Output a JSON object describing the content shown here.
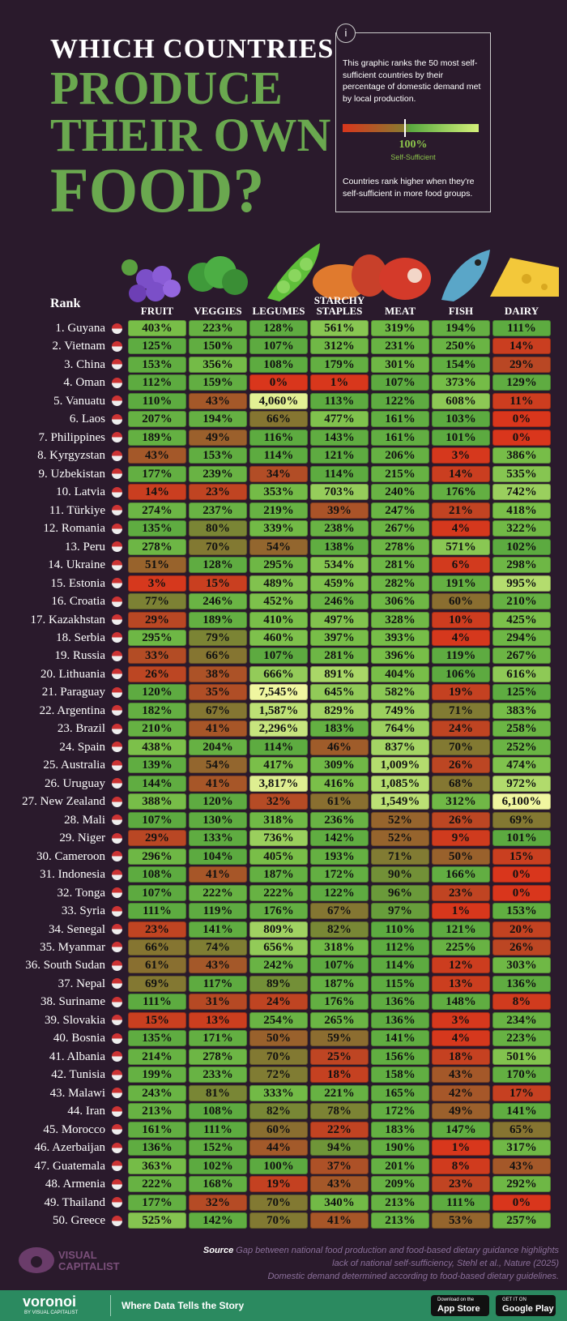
{
  "header": {
    "title_lines": [
      "WHICH COUNTRIES",
      "PRODUCE",
      "THEIR OWN",
      "FOOD?"
    ]
  },
  "info": {
    "icon": "i",
    "text": "This graphic ranks the 50 most self-sufficient countries by their percentage of domestic demand met by local production.",
    "legend_value": "100%",
    "legend_label": "Self-Sufficient",
    "note": "Countries rank higher when they're self-sufficient in more food groups."
  },
  "table": {
    "rank_header": "Rank",
    "columns": [
      "FRUIT",
      "VEGGIES",
      "LEGUMES",
      "STARCHY STAPLES",
      "MEAT",
      "FISH",
      "DAIRY"
    ],
    "rows": [
      [
        "1. Guyana",
        "403%",
        "223%",
        "128%",
        "561%",
        "319%",
        "194%",
        "111%"
      ],
      [
        "2. Vietnam",
        "125%",
        "150%",
        "107%",
        "312%",
        "231%",
        "250%",
        "14%"
      ],
      [
        "3. China",
        "153%",
        "356%",
        "108%",
        "179%",
        "301%",
        "154%",
        "29%"
      ],
      [
        "4. Oman",
        "112%",
        "159%",
        "0%",
        "1%",
        "107%",
        "373%",
        "129%"
      ],
      [
        "5. Vanuatu",
        "110%",
        "43%",
        "4,060%",
        "113%",
        "122%",
        "608%",
        "11%"
      ],
      [
        "6. Laos",
        "207%",
        "194%",
        "66%",
        "477%",
        "161%",
        "103%",
        "0%"
      ],
      [
        "7. Philippines",
        "189%",
        "49%",
        "116%",
        "143%",
        "161%",
        "101%",
        "0%"
      ],
      [
        "8. Kyrgyzstan",
        "43%",
        "153%",
        "114%",
        "121%",
        "206%",
        "3%",
        "386%"
      ],
      [
        "9. Uzbekistan",
        "177%",
        "239%",
        "34%",
        "114%",
        "215%",
        "14%",
        "535%"
      ],
      [
        "10. Latvia",
        "14%",
        "23%",
        "353%",
        "703%",
        "240%",
        "176%",
        "742%"
      ],
      [
        "11. Türkiye",
        "274%",
        "237%",
        "219%",
        "39%",
        "247%",
        "21%",
        "418%"
      ],
      [
        "12. Romania",
        "135%",
        "80%",
        "339%",
        "238%",
        "267%",
        "4%",
        "322%"
      ],
      [
        "13. Peru",
        "278%",
        "70%",
        "54%",
        "138%",
        "278%",
        "571%",
        "102%"
      ],
      [
        "14. Ukraine",
        "51%",
        "128%",
        "295%",
        "534%",
        "281%",
        "6%",
        "298%"
      ],
      [
        "15. Estonia",
        "3%",
        "15%",
        "489%",
        "459%",
        "282%",
        "191%",
        "995%"
      ],
      [
        "16. Croatia",
        "77%",
        "246%",
        "452%",
        "246%",
        "306%",
        "60%",
        "210%"
      ],
      [
        "17. Kazakhstan",
        "29%",
        "189%",
        "410%",
        "497%",
        "328%",
        "10%",
        "425%"
      ],
      [
        "18. Serbia",
        "295%",
        "79%",
        "460%",
        "397%",
        "393%",
        "4%",
        "294%"
      ],
      [
        "19. Russia",
        "33%",
        "66%",
        "107%",
        "281%",
        "396%",
        "119%",
        "267%"
      ],
      [
        "20. Lithuania",
        "26%",
        "38%",
        "666%",
        "891%",
        "404%",
        "106%",
        "616%"
      ],
      [
        "21. Paraguay",
        "120%",
        "35%",
        "7,545%",
        "645%",
        "582%",
        "19%",
        "125%"
      ],
      [
        "22. Argentina",
        "182%",
        "67%",
        "1,587%",
        "829%",
        "749%",
        "71%",
        "383%"
      ],
      [
        "23. Brazil",
        "210%",
        "41%",
        "2,296%",
        "183%",
        "764%",
        "24%",
        "258%"
      ],
      [
        "24. Spain",
        "438%",
        "204%",
        "114%",
        "46%",
        "837%",
        "70%",
        "252%"
      ],
      [
        "25. Australia",
        "139%",
        "54%",
        "417%",
        "309%",
        "1,009%",
        "26%",
        "474%"
      ],
      [
        "26. Uruguay",
        "144%",
        "41%",
        "3,817%",
        "416%",
        "1,085%",
        "68%",
        "972%"
      ],
      [
        "27. New Zealand",
        "388%",
        "120%",
        "32%",
        "61%",
        "1,549%",
        "312%",
        "6,100%"
      ],
      [
        "28. Mali",
        "107%",
        "130%",
        "318%",
        "236%",
        "52%",
        "26%",
        "69%"
      ],
      [
        "29. Niger",
        "29%",
        "133%",
        "736%",
        "142%",
        "52%",
        "9%",
        "101%"
      ],
      [
        "30. Cameroon",
        "296%",
        "104%",
        "405%",
        "193%",
        "71%",
        "50%",
        "15%"
      ],
      [
        "31. Indonesia",
        "108%",
        "41%",
        "187%",
        "172%",
        "90%",
        "166%",
        "0%"
      ],
      [
        "32. Tonga",
        "107%",
        "222%",
        "222%",
        "122%",
        "96%",
        "23%",
        "0%"
      ],
      [
        "33. Syria",
        "111%",
        "119%",
        "176%",
        "67%",
        "97%",
        "1%",
        "153%"
      ],
      [
        "34. Senegal",
        "23%",
        "141%",
        "809%",
        "82%",
        "110%",
        "121%",
        "20%"
      ],
      [
        "35. Myanmar",
        "66%",
        "74%",
        "656%",
        "318%",
        "112%",
        "225%",
        "26%"
      ],
      [
        "36. South Sudan",
        "61%",
        "43%",
        "242%",
        "107%",
        "114%",
        "12%",
        "303%"
      ],
      [
        "37. Nepal",
        "69%",
        "117%",
        "89%",
        "187%",
        "115%",
        "13%",
        "136%"
      ],
      [
        "38. Suriname",
        "111%",
        "31%",
        "24%",
        "176%",
        "136%",
        "148%",
        "8%"
      ],
      [
        "39. Slovakia",
        "15%",
        "13%",
        "254%",
        "265%",
        "136%",
        "3%",
        "234%"
      ],
      [
        "40. Bosnia",
        "135%",
        "171%",
        "50%",
        "59%",
        "141%",
        "4%",
        "223%"
      ],
      [
        "41. Albania",
        "214%",
        "278%",
        "70%",
        "25%",
        "156%",
        "18%",
        "501%"
      ],
      [
        "42. Tunisia",
        "199%",
        "233%",
        "72%",
        "18%",
        "158%",
        "43%",
        "170%"
      ],
      [
        "43. Malawi",
        "243%",
        "81%",
        "333%",
        "221%",
        "165%",
        "42%",
        "17%"
      ],
      [
        "44. Iran",
        "213%",
        "108%",
        "82%",
        "78%",
        "172%",
        "49%",
        "141%"
      ],
      [
        "45. Morocco",
        "161%",
        "111%",
        "60%",
        "22%",
        "183%",
        "147%",
        "65%"
      ],
      [
        "46. Azerbaijan",
        "136%",
        "152%",
        "44%",
        "94%",
        "190%",
        "1%",
        "317%"
      ],
      [
        "47. Guatemala",
        "363%",
        "102%",
        "100%",
        "37%",
        "201%",
        "8%",
        "43%"
      ],
      [
        "48. Armenia",
        "222%",
        "168%",
        "19%",
        "43%",
        "209%",
        "23%",
        "292%"
      ],
      [
        "49. Thailand",
        "177%",
        "32%",
        "70%",
        "340%",
        "213%",
        "111%",
        "0%"
      ],
      [
        "50. Greece",
        "525%",
        "142%",
        "70%",
        "41%",
        "213%",
        "53%",
        "257%"
      ]
    ]
  },
  "footer": {
    "source_label": "Source",
    "source_text": "Gap between national food production and food-based dietary guidance highlights lack of national self-sufficiency, Stehl et al., Nature (2025)",
    "source_note": "Domestic demand determined according to food-based dietary guidelines.",
    "logo": "VISUAL CAPITALIST"
  },
  "bar": {
    "brand": "voronoi",
    "brand_sub": "BY VISUAL CAPITALIST",
    "tagline": "Where Data Tells the Story",
    "app_store_small": "Download on the",
    "app_store": "App Store",
    "google_small": "GET IT ON",
    "google": "Google Play"
  }
}
